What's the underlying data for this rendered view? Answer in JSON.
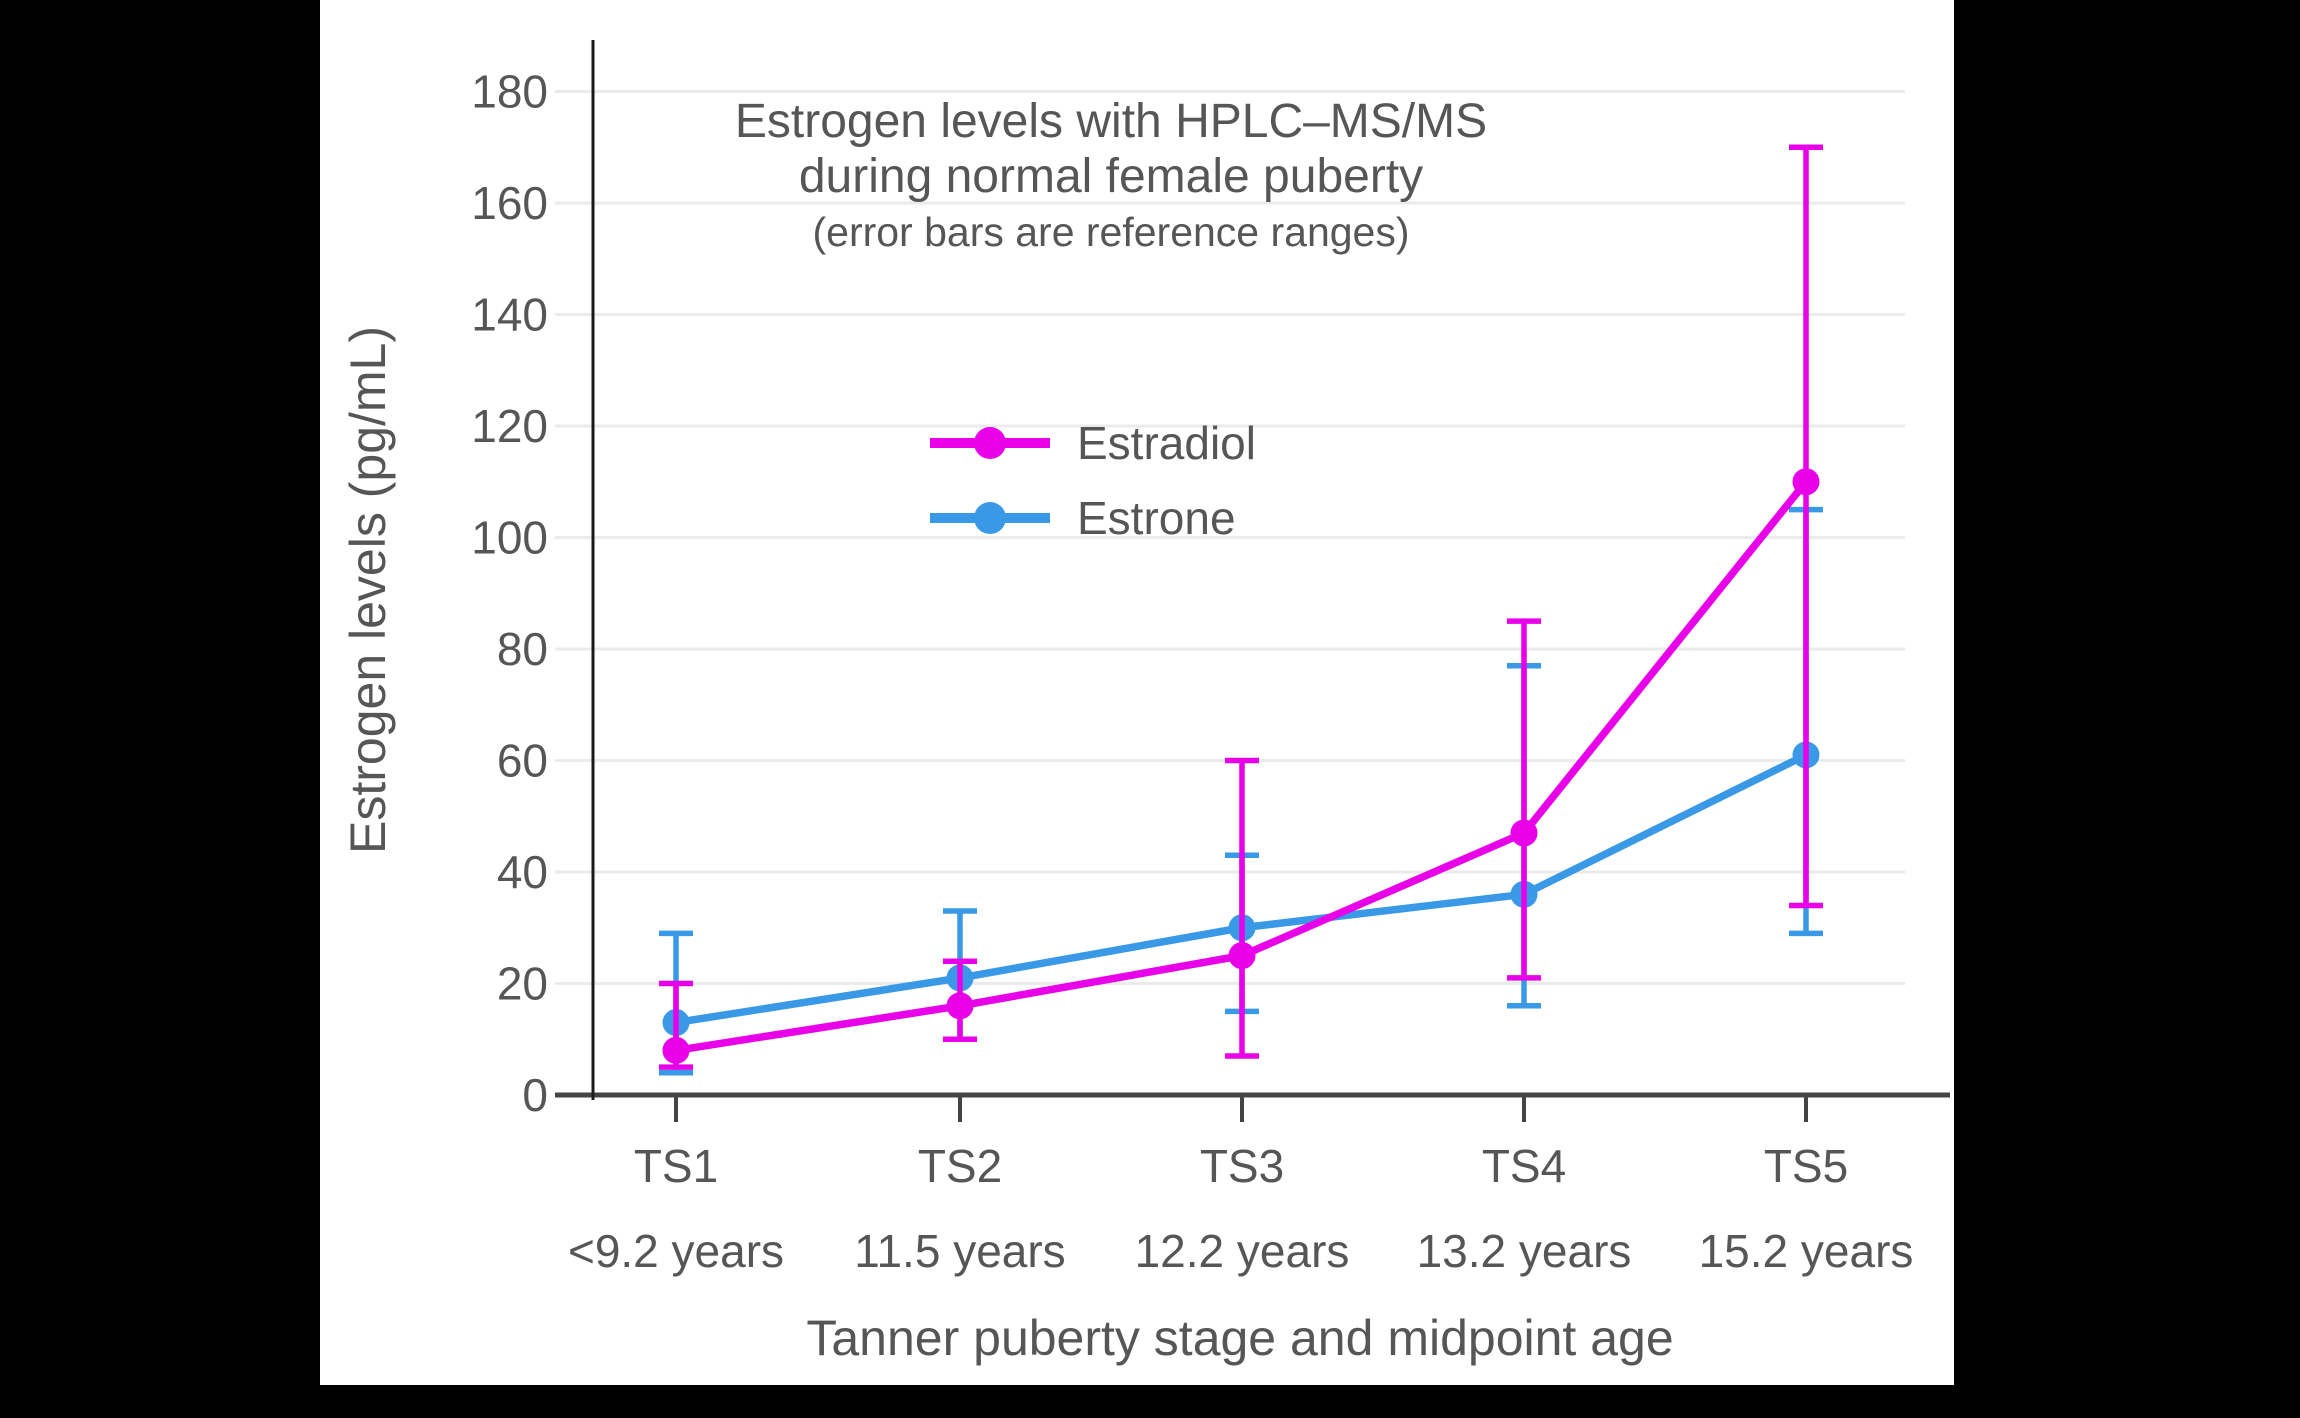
{
  "canvas": {
    "background": "#000000",
    "card_background": "#ffffff"
  },
  "colors": {
    "grid": "#ebebeb",
    "x_axis": "#444444",
    "y_axis": "#1a1a1a",
    "text": "#565656",
    "estradiol": "#e800e8",
    "estrone": "#3a99e6"
  },
  "chart_data": {
    "type": "line",
    "title_line1": "Estrogen levels with HPLC–MS/MS",
    "title_line2": "during normal female puberty",
    "subtitle": "(error bars are reference ranges)",
    "xlabel": "Tanner puberty stage and midpoint age",
    "ylabel": "Estrogen levels (pg/mL)",
    "categories": [
      "TS1",
      "TS2",
      "TS3",
      "TS4",
      "TS5"
    ],
    "category_ages": [
      "<9.2 years",
      "11.5 years",
      "12.2 years",
      "13.2 years",
      "15.2 years"
    ],
    "ylim": [
      0,
      187
    ],
    "yticks": [
      0,
      20,
      40,
      60,
      80,
      100,
      120,
      140,
      160,
      180
    ],
    "grid": true,
    "legend_position": "inside-upper-left",
    "series": [
      {
        "name": "Estradiol",
        "color": "#e800e8",
        "values": [
          8,
          16,
          25,
          47,
          110
        ],
        "err_low": [
          5,
          10,
          7,
          21,
          34
        ],
        "err_high": [
          20,
          24,
          60,
          85,
          170
        ]
      },
      {
        "name": "Estrone",
        "color": "#3a99e6",
        "values": [
          13,
          21,
          30,
          36,
          61
        ],
        "err_low": [
          4,
          10,
          15,
          16,
          29
        ],
        "err_high": [
          29,
          33,
          43,
          77,
          105
        ]
      }
    ]
  }
}
